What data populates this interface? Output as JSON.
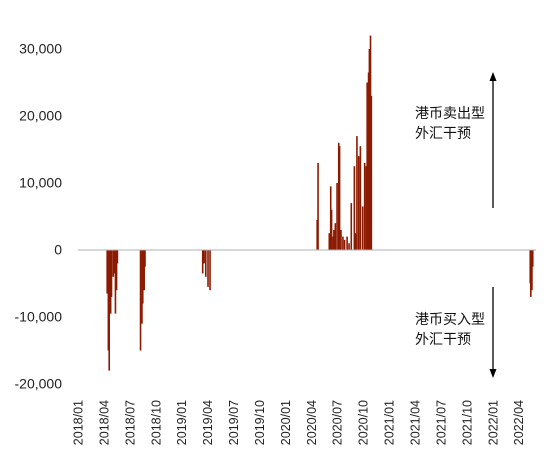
{
  "chart_data": {
    "type": "bar",
    "title": "",
    "xlabel": "",
    "ylabel": "",
    "ylim": [
      -20000,
      30000
    ],
    "yticks": [
      -20000,
      -10000,
      0,
      10000,
      20000,
      30000
    ],
    "ytick_labels": [
      "-20,000",
      "-10,000",
      "0",
      "10,000",
      "20,000",
      "30,000"
    ],
    "xlim": [
      "2018-01",
      "2022-06"
    ],
    "xtick_labels": [
      "2018/01",
      "2018/04",
      "2018/07",
      "2018/10",
      "2019/01",
      "2019/04",
      "2019/07",
      "2019/10",
      "2020/01",
      "2020/04",
      "2020/07",
      "2020/10",
      "2021/01",
      "2021/04",
      "2021/07",
      "2021/10",
      "2022/01",
      "2022/04"
    ],
    "bar_color": "#8B1A00",
    "series": [
      {
        "x": [
          "2018-04-12",
          "2018-04-16",
          "2018-04-19",
          "2018-04-24",
          "2018-04-27",
          "2018-05-03",
          "2018-05-08",
          "2018-05-11",
          "2018-05-15",
          "2018-05-18",
          "2018-08-08",
          "2018-08-13",
          "2018-08-16",
          "2018-08-21",
          "2018-08-24",
          "2019-03-14",
          "2019-03-19",
          "2019-03-25",
          "2019-04-02",
          "2019-04-09",
          "2020-04-21",
          "2020-04-24",
          "2020-06-03",
          "2020-06-08",
          "2020-06-11",
          "2020-06-16",
          "2020-06-19",
          "2020-06-24",
          "2020-06-30",
          "2020-07-06",
          "2020-07-09",
          "2020-07-14",
          "2020-07-21",
          "2020-07-27",
          "2020-08-05",
          "2020-08-12",
          "2020-08-20",
          "2020-08-31",
          "2020-09-04",
          "2020-09-09",
          "2020-09-15",
          "2020-09-21",
          "2020-09-29",
          "2020-10-06",
          "2020-10-12",
          "2020-10-15",
          "2020-10-20",
          "2020-10-23",
          "2020-10-27",
          "2020-10-30",
          "2022-05-11",
          "2022-05-13",
          "2022-05-17",
          "2022-05-20"
        ],
        "values": [
          -6500,
          -15000,
          -18000,
          -9500,
          -7000,
          -4000,
          -3500,
          -9500,
          -6000,
          -2000,
          -15000,
          -11000,
          -8000,
          -6000,
          -2500,
          -3500,
          -2000,
          -4000,
          -5500,
          -6000,
          4500,
          13000,
          2500,
          9500,
          6000,
          2000,
          3000,
          4000,
          10000,
          16000,
          15500,
          3000,
          2000,
          1500,
          2000,
          1000,
          7000,
          12500,
          2500,
          17000,
          14000,
          15500,
          6500,
          13000,
          12500,
          25000,
          26500,
          30000,
          32000,
          23000,
          -5000,
          -7000,
          -6000,
          -2500
        ]
      }
    ],
    "annotations": [
      {
        "lines": [
          "港币卖出型",
          "外汇干预"
        ],
        "arrow": "up"
      },
      {
        "lines": [
          "港币买入型",
          "外汇干预"
        ],
        "arrow": "down"
      }
    ]
  }
}
